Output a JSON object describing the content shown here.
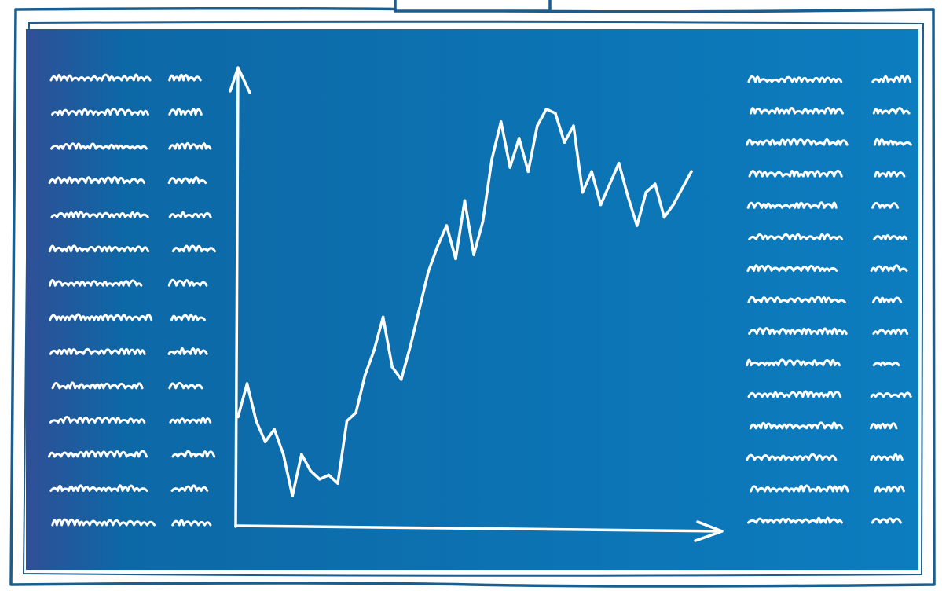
{
  "colors": {
    "frame_stroke": "#1b5d8c",
    "board_left": "#2f4f96",
    "board_mid": "#0d68a6",
    "board_right": "#0c7dbf",
    "chalk": "#ffffff"
  },
  "chart_data": {
    "type": "line",
    "title": "",
    "xlabel": "",
    "ylabel": "",
    "axis_ticks": "none",
    "grid": false,
    "legend": "none",
    "x": [
      0,
      1,
      2,
      3,
      4,
      5,
      6,
      7,
      8,
      9,
      10,
      11,
      12,
      13,
      14,
      15,
      16,
      17,
      18,
      19,
      20,
      21,
      22,
      23,
      24,
      25,
      26,
      27,
      28,
      29,
      30,
      31,
      32,
      33,
      34,
      35,
      36,
      37,
      38,
      39,
      40,
      41,
      42,
      43,
      44,
      45,
      46,
      47,
      48,
      49,
      50
    ],
    "values": [
      26,
      34,
      25,
      20,
      23,
      17,
      7,
      17,
      13,
      11,
      12,
      10,
      25,
      27,
      36,
      42,
      50,
      38,
      35,
      43,
      52,
      61,
      67,
      72,
      64,
      78,
      65,
      73,
      88,
      97,
      86,
      93,
      85,
      96,
      100,
      99,
      92,
      96,
      80,
      85,
      77,
      82,
      87,
      79,
      72,
      80,
      82,
      74,
      77,
      81,
      85
    ],
    "ylim": [
      0,
      110
    ]
  },
  "scribbles": {
    "left_rows": 14,
    "right_rows": 15,
    "style": "illegible handwriting"
  }
}
